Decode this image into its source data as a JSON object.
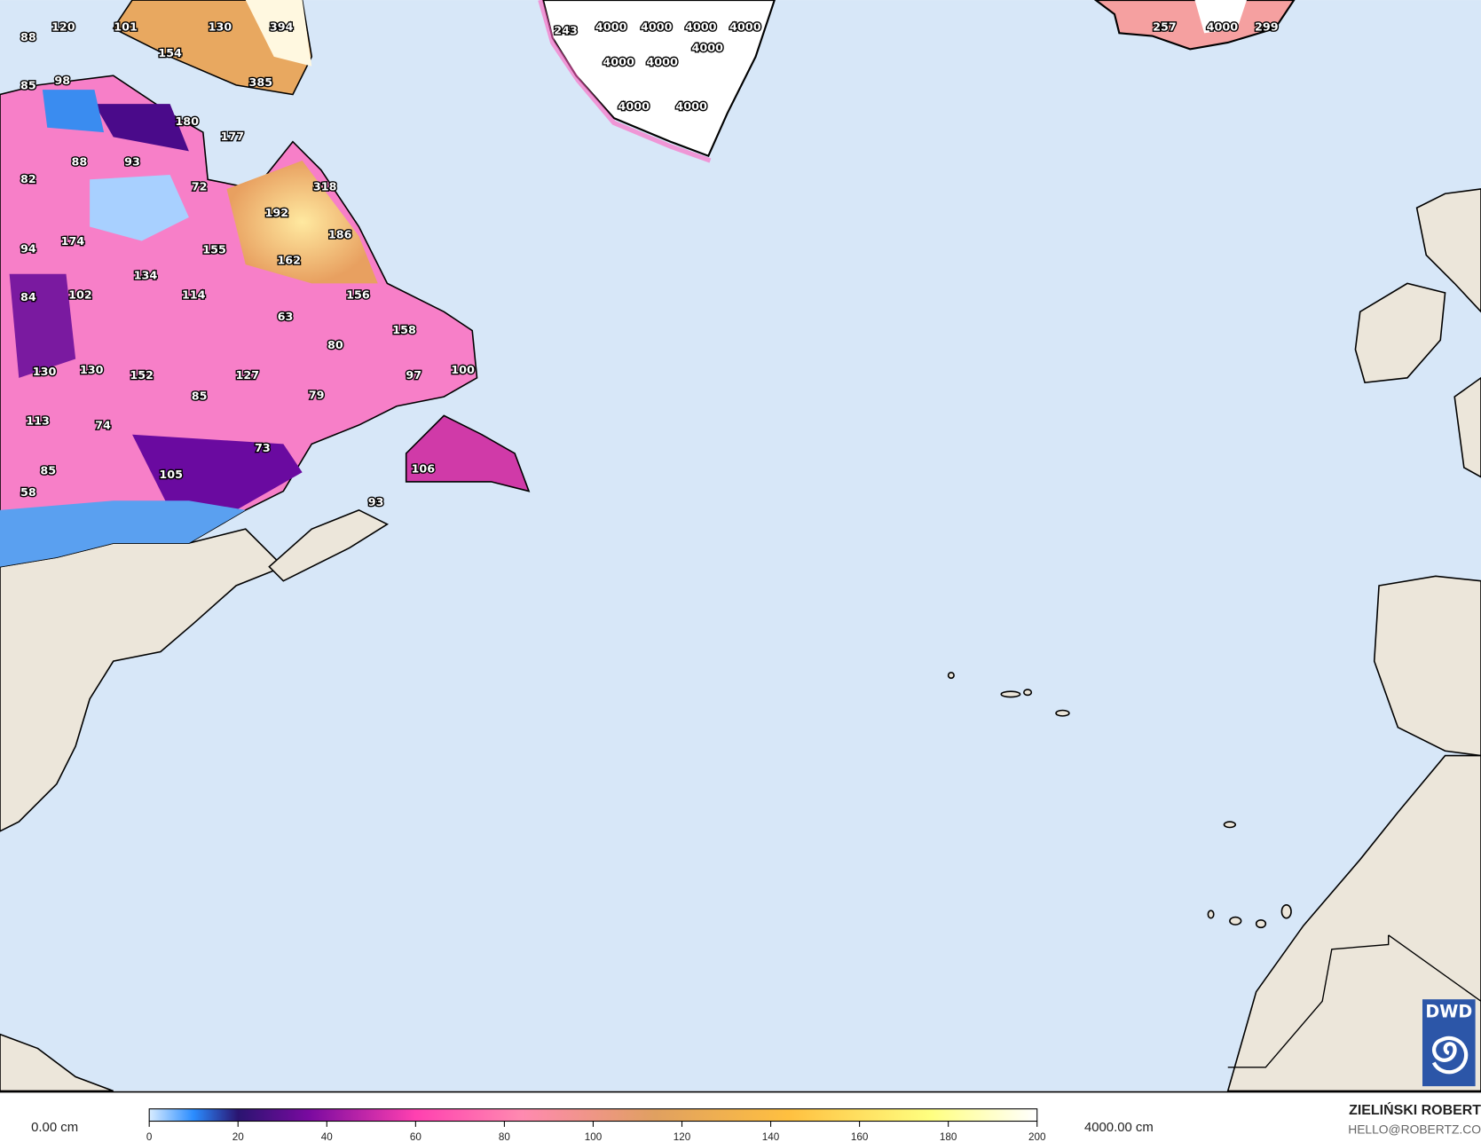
{
  "map": {
    "ocean_color": "#d7e7f8",
    "land_color": "#ece6da",
    "labels_canada": [
      "120",
      "101",
      "130",
      "394",
      "88",
      "154",
      "385",
      "85",
      "98",
      "180",
      "177",
      "88",
      "93",
      "82",
      "72",
      "318",
      "192",
      "186",
      "174",
      "94",
      "155",
      "162",
      "134",
      "84",
      "102",
      "114",
      "156",
      "63",
      "158",
      "80",
      "130",
      "130",
      "152",
      "127",
      "97",
      "100",
      "85",
      "79",
      "113",
      "74",
      "73",
      "106",
      "85",
      "105",
      "58",
      "93"
    ],
    "labels_greenland": [
      "243",
      "4000",
      "4000",
      "4000",
      "4000",
      "4000",
      "4000",
      "4000",
      "4000",
      "4000"
    ],
    "labels_iceland": [
      "257",
      "4000",
      "299"
    ]
  },
  "logo": {
    "text": "DWD",
    "color": "#2c56a8"
  },
  "legend": {
    "min_label": "0.00 cm",
    "max_label": "4000.00 cm",
    "ticks": [
      "0",
      "20",
      "40",
      "60",
      "80",
      "100",
      "120",
      "140",
      "160",
      "180",
      "200"
    ],
    "colors": [
      "#d8ecff",
      "#2a8cff",
      "#2a1470",
      "#7a0aa0",
      "#ff40b0",
      "#ff8ab0",
      "#e0a060",
      "#ffc040",
      "#ffff80",
      "#ffffff"
    ]
  },
  "credit": {
    "name": "ZIELIŃSKI ROBERT",
    "email": "HELLO@ROBERTZ.CO"
  }
}
